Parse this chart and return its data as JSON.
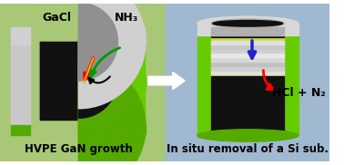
{
  "bg_left": "#a8c878",
  "bg_right": "#a0b8d0",
  "left_title": "HVPE GaN growth",
  "right_title": "In situ removal of a Si sub.",
  "label_gacl": "GaCl",
  "label_nh3": "NH₃",
  "label_hcl": "HCl + N₂",
  "reactor_outer_green": "#66cc00",
  "reactor_dark_inner": "#111111",
  "reactor_yellow_green": "#ccdd44",
  "font_size_label": 9,
  "font_size_title": 8.5,
  "font_weight": "bold"
}
